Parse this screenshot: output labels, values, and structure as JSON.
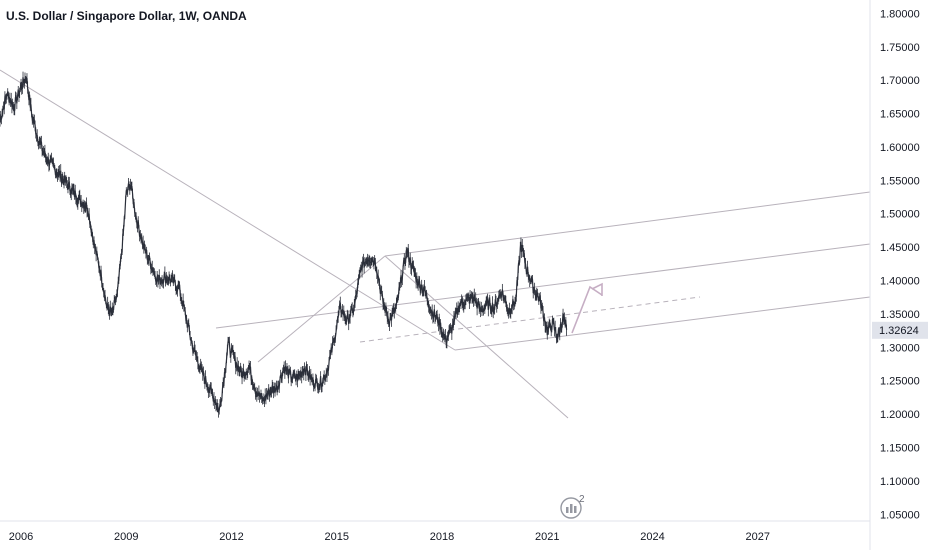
{
  "header": {
    "title": "U.S. Dollar / Singapore Dollar, 1W, OANDA"
  },
  "colors": {
    "background": "#ffffff",
    "candle": "#2a2e39",
    "drawing_line": "#b8b2bb",
    "arrow": "#c6aec4",
    "axis_line": "#e0e3eb",
    "last_price_tag": "#e0e3eb"
  },
  "watermark": {
    "icon": "tradingview-logo-icon",
    "badge": "2"
  },
  "chart_data": {
    "type": "candlestick-line",
    "title": "U.S. Dollar / Singapore Dollar, 1W, OANDA",
    "x_tick_labels": [
      "2006",
      "2009",
      "2012",
      "2015",
      "2018",
      "2021",
      "2024",
      "2027"
    ],
    "x_ticks": [
      2006,
      2009,
      2012,
      2015,
      2018,
      2021,
      2024,
      2027
    ],
    "x_range": [
      2005.4,
      2030.2
    ],
    "y_tick_labels": [
      "1.80000",
      "1.75000",
      "1.70000",
      "1.65000",
      "1.60000",
      "1.55000",
      "1.50000",
      "1.45000",
      "1.40000",
      "1.35000",
      "1.30000",
      "1.25000",
      "1.20000",
      "1.15000",
      "1.10000",
      "1.05000"
    ],
    "y_ticks": [
      1.8,
      1.75,
      1.7,
      1.65,
      1.6,
      1.55,
      1.5,
      1.45,
      1.4,
      1.35,
      1.3,
      1.25,
      1.2,
      1.15,
      1.1,
      1.05
    ],
    "y_range": [
      1.04,
      1.82
    ],
    "last_price": "1.32624",
    "last_price_value": 1.32624,
    "price_path": [
      [
        2005.4,
        1.64
      ],
      [
        2005.6,
        1.68
      ],
      [
        2005.8,
        1.66
      ],
      [
        2006.0,
        1.69
      ],
      [
        2006.15,
        1.705
      ],
      [
        2006.3,
        1.65
      ],
      [
        2006.5,
        1.61
      ],
      [
        2006.7,
        1.585
      ],
      [
        2007.0,
        1.565
      ],
      [
        2007.3,
        1.545
      ],
      [
        2007.6,
        1.525
      ],
      [
        2007.9,
        1.51
      ],
      [
        2008.1,
        1.45
      ],
      [
        2008.3,
        1.405
      ],
      [
        2008.45,
        1.36
      ],
      [
        2008.6,
        1.35
      ],
      [
        2008.75,
        1.38
      ],
      [
        2008.9,
        1.46
      ],
      [
        2009.0,
        1.53
      ],
      [
        2009.12,
        1.545
      ],
      [
        2009.3,
        1.49
      ],
      [
        2009.5,
        1.45
      ],
      [
        2009.7,
        1.425
      ],
      [
        2009.9,
        1.4
      ],
      [
        2010.1,
        1.405
      ],
      [
        2010.3,
        1.4
      ],
      [
        2010.5,
        1.39
      ],
      [
        2010.7,
        1.345
      ],
      [
        2010.9,
        1.3
      ],
      [
        2011.1,
        1.27
      ],
      [
        2011.3,
        1.245
      ],
      [
        2011.5,
        1.225
      ],
      [
        2011.65,
        1.205
      ],
      [
        2011.8,
        1.26
      ],
      [
        2011.9,
        1.305
      ],
      [
        2012.1,
        1.28
      ],
      [
        2012.3,
        1.26
      ],
      [
        2012.5,
        1.27
      ],
      [
        2012.7,
        1.235
      ],
      [
        2012.9,
        1.22
      ],
      [
        2013.1,
        1.235
      ],
      [
        2013.3,
        1.24
      ],
      [
        2013.5,
        1.27
      ],
      [
        2013.7,
        1.255
      ],
      [
        2013.9,
        1.255
      ],
      [
        2014.1,
        1.27
      ],
      [
        2014.3,
        1.25
      ],
      [
        2014.5,
        1.245
      ],
      [
        2014.7,
        1.26
      ],
      [
        2014.9,
        1.305
      ],
      [
        2015.1,
        1.36
      ],
      [
        2015.3,
        1.34
      ],
      [
        2015.5,
        1.36
      ],
      [
        2015.7,
        1.42
      ],
      [
        2015.9,
        1.435
      ],
      [
        2016.1,
        1.43
      ],
      [
        2016.3,
        1.37
      ],
      [
        2016.5,
        1.34
      ],
      [
        2016.7,
        1.36
      ],
      [
        2016.85,
        1.405
      ],
      [
        2017.0,
        1.445
      ],
      [
        2017.15,
        1.42
      ],
      [
        2017.3,
        1.4
      ],
      [
        2017.5,
        1.385
      ],
      [
        2017.7,
        1.355
      ],
      [
        2017.9,
        1.34
      ],
      [
        2018.1,
        1.31
      ],
      [
        2018.3,
        1.33
      ],
      [
        2018.5,
        1.365
      ],
      [
        2018.7,
        1.37
      ],
      [
        2018.9,
        1.375
      ],
      [
        2019.1,
        1.355
      ],
      [
        2019.3,
        1.365
      ],
      [
        2019.5,
        1.36
      ],
      [
        2019.7,
        1.385
      ],
      [
        2019.9,
        1.355
      ],
      [
        2020.1,
        1.37
      ],
      [
        2020.25,
        1.455
      ],
      [
        2020.4,
        1.42
      ],
      [
        2020.6,
        1.39
      ],
      [
        2020.8,
        1.37
      ],
      [
        2021.0,
        1.325
      ],
      [
        2021.15,
        1.335
      ],
      [
        2021.3,
        1.315
      ],
      [
        2021.45,
        1.345
      ],
      [
        2021.55,
        1.32624
      ]
    ]
  }
}
